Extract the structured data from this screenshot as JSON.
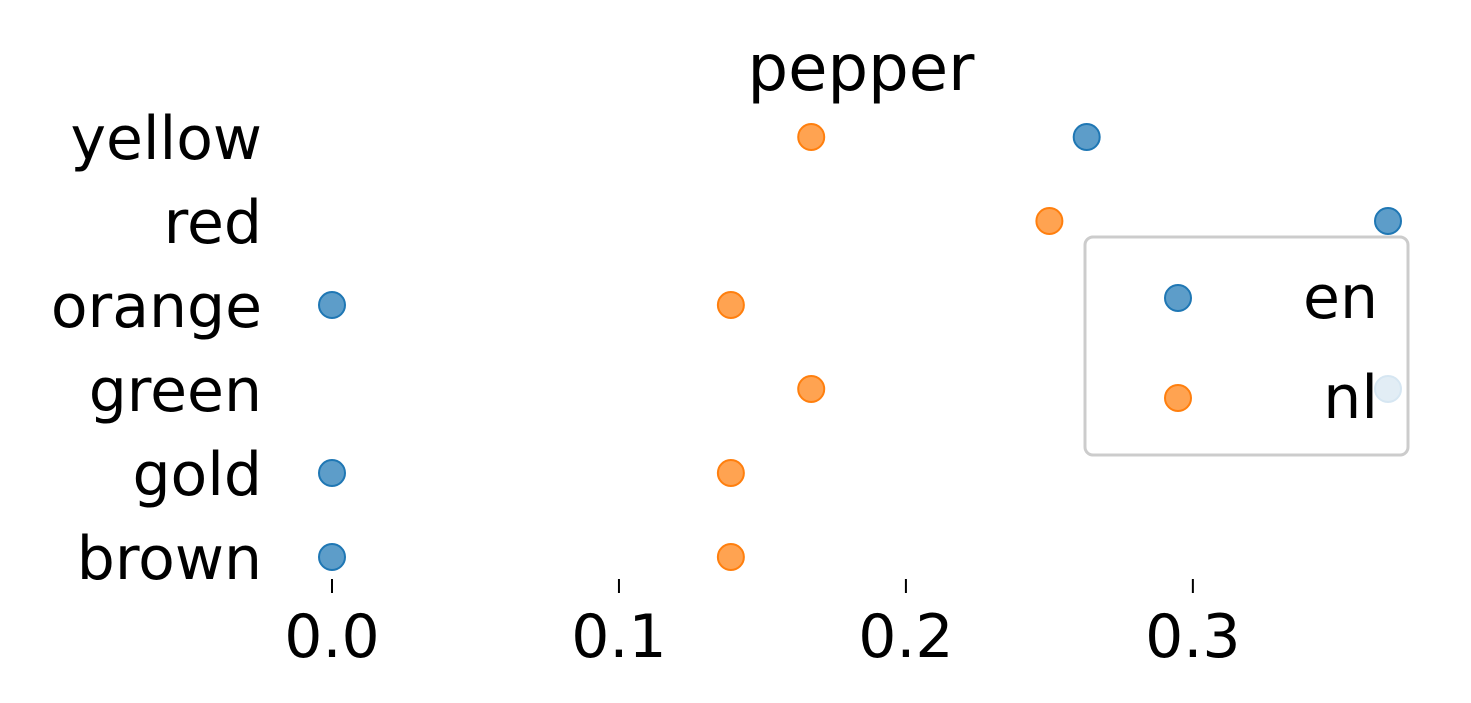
{
  "chart_data": {
    "type": "scatter",
    "title": "pepper",
    "categories": [
      "brown",
      "gold",
      "green",
      "orange",
      "red",
      "yellow"
    ],
    "x_ticks": [
      "0.0",
      "0.1",
      "0.2",
      "0.3"
    ],
    "x_tick_values": [
      0.0,
      0.1,
      0.2,
      0.3
    ],
    "xlim": [
      0.0,
      0.368
    ],
    "grid": false,
    "legend_position": "right",
    "series": [
      {
        "name": "en",
        "color": "#1f77b4",
        "values": [
          0.0,
          0.0,
          0.368,
          0.0,
          0.368,
          0.263
        ]
      },
      {
        "name": "nl",
        "color": "#ff7f0e",
        "values": [
          0.139,
          0.139,
          0.167,
          0.139,
          0.25,
          0.167
        ]
      }
    ]
  }
}
